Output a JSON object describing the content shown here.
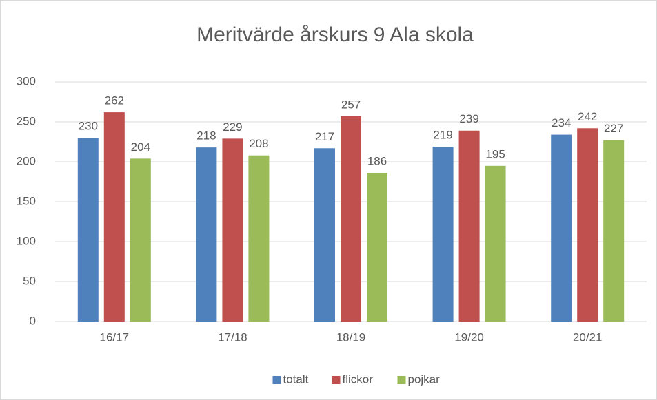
{
  "chart_data": {
    "type": "bar",
    "title": "Meritvärde årskurs 9 Ala skola",
    "categories": [
      "16/17",
      "17/18",
      "18/19",
      "19/20",
      "20/21"
    ],
    "series": [
      {
        "name": "totalt",
        "color": "#4f81bd",
        "values": [
          230,
          218,
          217,
          219,
          234
        ]
      },
      {
        "name": "flickor",
        "color": "#c0504d",
        "values": [
          262,
          229,
          257,
          239,
          242
        ]
      },
      {
        "name": "pojkar",
        "color": "#9bbb59",
        "values": [
          204,
          208,
          186,
          195,
          227
        ]
      }
    ],
    "ylim": [
      0,
      300
    ],
    "yticks": [
      0,
      50,
      100,
      150,
      200,
      250,
      300
    ],
    "grid": true,
    "legend": "bottom"
  }
}
